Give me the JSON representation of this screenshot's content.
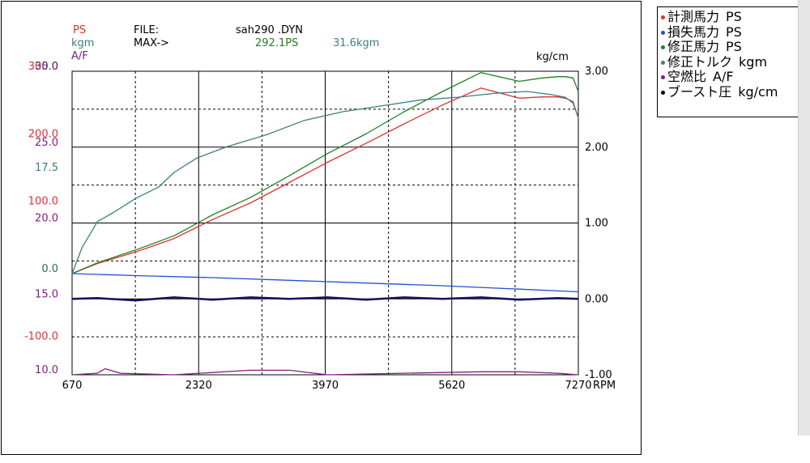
{
  "header": {
    "ps_label": "PS",
    "kgm_label": "kgm",
    "af_label": "A/F",
    "file_label": "FILE:",
    "file_name": "sah290 .DYN",
    "max_label": "MAX->",
    "max_ps": "292.1PS",
    "max_kgm": "31.6kgm",
    "right_unit": "kg/cm",
    "x_unit": "RPM"
  },
  "colors": {
    "measured": "#e03030",
    "loss": "#2050d0",
    "corrected": "#208020",
    "torque": "#3a8080",
    "af": "#802080",
    "boost": "#101060"
  },
  "legend": [
    {
      "label": "計測馬力",
      "unit": "PS",
      "color": "#e03030"
    },
    {
      "label": "損失馬力",
      "unit": "PS",
      "color": "#2050d0"
    },
    {
      "label": "修正馬力",
      "unit": "PS",
      "color": "#208020"
    },
    {
      "label": "修正トルク",
      "unit": "kgm",
      "color": "#3a8080"
    },
    {
      "label": "空燃比",
      "unit": "A/F",
      "color": "#802080"
    },
    {
      "label": "ブースト圧",
      "unit": "kg/cm",
      "color": "#000000"
    }
  ],
  "chart_data": {
    "type": "line",
    "x_ticks": [
      "670",
      "2320",
      "3970",
      "5620",
      "7270"
    ],
    "xlim": [
      670,
      7270
    ],
    "left_axes": {
      "ps": {
        "ticks": [
          "300.0",
          "200.0",
          "100.0",
          "0.0",
          "-100.0"
        ],
        "ylim": [
          -150,
          300
        ]
      },
      "kgm": {
        "ticks": [
          "35.0",
          "17.5",
          "0.0"
        ],
        "ylim": [
          -17.5,
          35
        ]
      },
      "af": {
        "ticks": [
          "30.0",
          "25.0",
          "20.0",
          "15.0",
          "10.0"
        ],
        "ylim": [
          10,
          30
        ]
      }
    },
    "right_axis": {
      "ticks": [
        "3.00",
        "2.00",
        "1.00",
        "0.00",
        "-1.00"
      ],
      "ylim": [
        -1,
        3
      ]
    },
    "series": [
      {
        "name": "計測馬力",
        "axis": "ps",
        "key": "measured",
        "x": [
          670,
          1000,
          1500,
          2000,
          2500,
          3000,
          3500,
          4000,
          4500,
          5000,
          5500,
          6000,
          6500,
          6800,
          7000,
          7100,
          7200,
          7270
        ],
        "y": [
          0,
          15,
          32,
          52,
          80,
          105,
          135,
          165,
          193,
          222,
          250,
          275,
          260,
          262,
          262,
          260,
          255,
          230
        ]
      },
      {
        "name": "損失馬力",
        "axis": "ps",
        "key": "loss",
        "x": [
          670,
          1500,
          2500,
          3500,
          4500,
          5500,
          6500,
          7270
        ],
        "y": [
          0,
          -3,
          -6,
          -10,
          -14,
          -18,
          -23,
          -27
        ]
      },
      {
        "name": "修正馬力",
        "axis": "ps",
        "key": "corrected",
        "x": [
          670,
          1000,
          1500,
          2000,
          2500,
          3000,
          3500,
          4000,
          4500,
          5000,
          5500,
          6000,
          6500,
          6800,
          7000,
          7100,
          7200,
          7270
        ],
        "y": [
          0,
          16,
          35,
          56,
          87,
          113,
          145,
          178,
          207,
          240,
          270,
          298,
          285,
          290,
          292,
          292,
          290,
          270
        ]
      },
      {
        "name": "修正トルク",
        "axis": "kgm",
        "key": "torque",
        "x": [
          670,
          800,
          1000,
          1200,
          1500,
          1800,
          2000,
          2300,
          2700,
          3200,
          3700,
          4200,
          4700,
          5200,
          5700,
          6200,
          6600,
          6900,
          7100,
          7200,
          7270
        ],
        "y": [
          0,
          4.5,
          9,
          10.5,
          13,
          15,
          17.5,
          20,
          22,
          24,
          26.5,
          28,
          29,
          30,
          30.5,
          31.2,
          31.5,
          31.0,
          30.5,
          29.5,
          27
        ]
      },
      {
        "name": "空燃比",
        "axis": "af",
        "key": "af",
        "x": [
          670,
          1000,
          1100,
          1300,
          2000,
          3000,
          3500,
          4000,
          5000,
          6000,
          6500,
          7000,
          7270
        ],
        "y": [
          10,
          10.1,
          10.4,
          10.1,
          10,
          10.3,
          10.3,
          10,
          10.1,
          10.2,
          10.2,
          10.1,
          10
        ]
      },
      {
        "name": "ブースト圧",
        "axis": "boost",
        "key": "boost",
        "x": [
          670,
          1000,
          1500,
          2000,
          2500,
          3000,
          3500,
          4000,
          4500,
          5000,
          5500,
          6000,
          6500,
          7000,
          7270
        ],
        "y": [
          0,
          0.01,
          -0.02,
          0.02,
          -0.01,
          0.02,
          0.0,
          0.02,
          -0.01,
          0.02,
          0.0,
          0.02,
          -0.01,
          0.01,
          0.0
        ]
      }
    ]
  }
}
